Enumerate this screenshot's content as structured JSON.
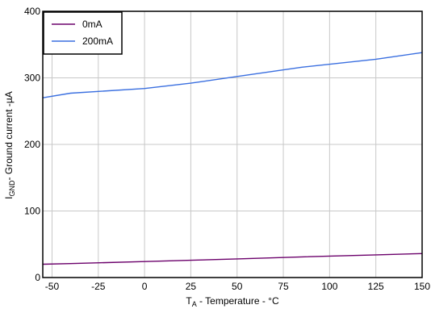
{
  "chart_data": {
    "type": "line",
    "title": "",
    "xlabel": {
      "main": "T",
      "sub": "A",
      "rest": " - Temperature - °C"
    },
    "ylabel": {
      "main": "I",
      "sub": "GND",
      "rest": "- Ground current -µA"
    },
    "xlim": [
      -55,
      150
    ],
    "ylim": [
      0,
      400
    ],
    "xticks": [
      -50,
      -25,
      0,
      25,
      50,
      75,
      100,
      125,
      150
    ],
    "yticks": [
      0,
      100,
      200,
      300,
      400
    ],
    "grid": true,
    "legend_position": "top-left",
    "series": [
      {
        "name": "0mA",
        "color": "#6b006b",
        "x": [
          -55,
          -40,
          0,
          25,
          50,
          85,
          125,
          150
        ],
        "y": [
          20,
          21,
          24,
          26,
          28,
          31,
          34,
          36
        ]
      },
      {
        "name": "200mA",
        "color": "#3a6fe0",
        "x": [
          -55,
          -40,
          0,
          25,
          50,
          85,
          125,
          150
        ],
        "y": [
          270,
          277,
          284,
          292,
          302,
          316,
          328,
          338
        ]
      }
    ]
  }
}
